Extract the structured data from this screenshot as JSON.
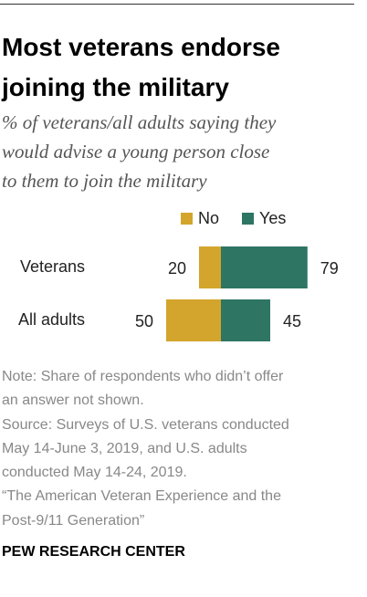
{
  "chart_data": {
    "type": "bar",
    "title": "Most veterans endorse joining the military",
    "subtitle": [
      "% of veterans/all adults saying they",
      "would advise a young person close",
      "to them to join the military"
    ],
    "categories": [
      "Veterans",
      "All adults"
    ],
    "series": [
      {
        "name": "No",
        "color": "#d4a52c",
        "values": [
          20,
          50
        ]
      },
      {
        "name": "Yes",
        "color": "#2e7564",
        "values": [
          79,
          45
        ]
      }
    ],
    "notes": [
      "Note: Share of respondents who didn’t offer",
      "an answer not shown.",
      "Source: Surveys of U.S. veterans conducted",
      "May 14-June 3, 2019, and U.S. adults",
      "conducted May 14-24, 2019.",
      "“The American Veteran Experience and the",
      "Post-9/11 Generation”"
    ],
    "footer": "PEW RESEARCH CENTER"
  }
}
